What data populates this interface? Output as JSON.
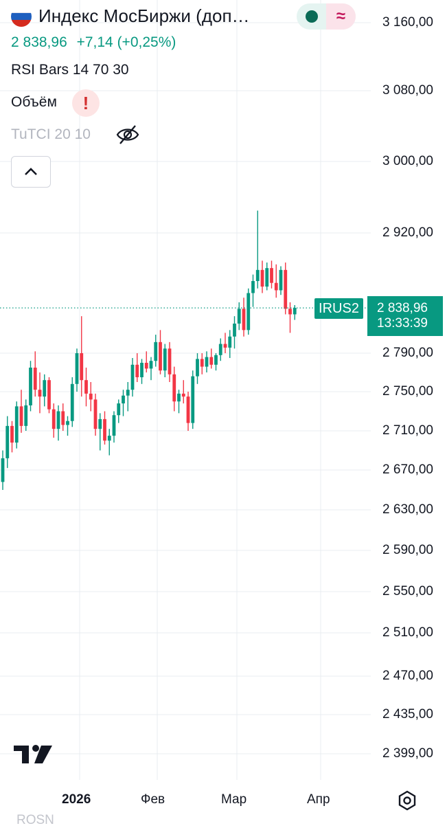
{
  "header": {
    "title": "Индекс МосБиржи (доп…",
    "price": "2 838,96",
    "change": "+7,14 (+0,25%)",
    "change_color": "#089981",
    "flag_icon": "russia-flag-icon",
    "indicators": [
      {
        "label": "RSI Bars 14 70 30"
      },
      {
        "label": "Объём",
        "badge": "!"
      },
      {
        "label": "TuTCI 20 10",
        "hidden_icon": "eye-off-icon"
      }
    ]
  },
  "toggles": {
    "left_icon": "dot-icon",
    "right_glyph": "≈"
  },
  "price_tag": {
    "symbol": "IRUS2",
    "price": "2 838,96",
    "countdown": "13:33:39",
    "color": "#089981"
  },
  "axis": {
    "y_ticks": [
      "3 160,00",
      "3 080,00",
      "3 000,00",
      "2 920,00",
      "2 790,00",
      "2 750,00",
      "2 710,00",
      "2 670,00",
      "2 630,00",
      "2 590,00",
      "2 550,00",
      "2 510,00",
      "2 470,00",
      "2 435,00",
      "2 399,00"
    ],
    "x_ticks": [
      "2026",
      "Фев",
      "Мар",
      "Апр"
    ]
  },
  "footer": {
    "partial_symbol": "ROSN"
  },
  "chart_data": {
    "type": "candlestick",
    "up_color": "#089981",
    "down_color": "#f23645",
    "last_price": 2838.96,
    "candles": [
      [
        2658,
        2690,
        2650,
        2682
      ],
      [
        2682,
        2725,
        2672,
        2715
      ],
      [
        2715,
        2720,
        2688,
        2698
      ],
      [
        2698,
        2740,
        2692,
        2735
      ],
      [
        2735,
        2752,
        2708,
        2715
      ],
      [
        2715,
        2742,
        2710,
        2736
      ],
      [
        2736,
        2782,
        2730,
        2775
      ],
      [
        2775,
        2792,
        2745,
        2752
      ],
      [
        2752,
        2770,
        2728,
        2745
      ],
      [
        2745,
        2768,
        2735,
        2762
      ],
      [
        2762,
        2765,
        2728,
        2732
      ],
      [
        2732,
        2738,
        2703,
        2712
      ],
      [
        2712,
        2736,
        2700,
        2730
      ],
      [
        2730,
        2738,
        2710,
        2716
      ],
      [
        2716,
        2725,
        2705,
        2720
      ],
      [
        2720,
        2765,
        2714,
        2758
      ],
      [
        2758,
        2795,
        2750,
        2790
      ],
      [
        2790,
        2830,
        2745,
        2762
      ],
      [
        2762,
        2775,
        2735,
        2748
      ],
      [
        2748,
        2760,
        2730,
        2742
      ],
      [
        2742,
        2748,
        2705,
        2712
      ],
      [
        2712,
        2728,
        2690,
        2722
      ],
      [
        2722,
        2730,
        2696,
        2700
      ],
      [
        2700,
        2712,
        2685,
        2705
      ],
      [
        2705,
        2730,
        2698,
        2726
      ],
      [
        2726,
        2742,
        2718,
        2738
      ],
      [
        2738,
        2752,
        2725,
        2746
      ],
      [
        2746,
        2760,
        2730,
        2752
      ],
      [
        2752,
        2785,
        2745,
        2778
      ],
      [
        2778,
        2790,
        2760,
        2765
      ],
      [
        2765,
        2784,
        2758,
        2780
      ],
      [
        2780,
        2792,
        2770,
        2774
      ],
      [
        2774,
        2786,
        2762,
        2782
      ],
      [
        2782,
        2810,
        2776,
        2802
      ],
      [
        2802,
        2815,
        2768,
        2772
      ],
      [
        2772,
        2800,
        2765,
        2795
      ],
      [
        2795,
        2802,
        2760,
        2768
      ],
      [
        2768,
        2776,
        2730,
        2740
      ],
      [
        2740,
        2752,
        2728,
        2748
      ],
      [
        2748,
        2762,
        2738,
        2745
      ],
      [
        2745,
        2750,
        2710,
        2718
      ],
      [
        2718,
        2772,
        2712,
        2766
      ],
      [
        2766,
        2790,
        2758,
        2784
      ],
      [
        2784,
        2790,
        2768,
        2776
      ],
      [
        2776,
        2792,
        2770,
        2786
      ],
      [
        2786,
        2795,
        2774,
        2778
      ],
      [
        2778,
        2790,
        2772,
        2788
      ],
      [
        2788,
        2806,
        2782,
        2800
      ],
      [
        2800,
        2812,
        2790,
        2796
      ],
      [
        2796,
        2815,
        2785,
        2808
      ],
      [
        2808,
        2830,
        2795,
        2822
      ],
      [
        2822,
        2845,
        2815,
        2838
      ],
      [
        2838,
        2850,
        2808,
        2815
      ],
      [
        2815,
        2860,
        2810,
        2855
      ],
      [
        2855,
        2875,
        2840,
        2868
      ],
      [
        2868,
        2945,
        2860,
        2880
      ],
      [
        2880,
        2890,
        2855,
        2862
      ],
      [
        2862,
        2888,
        2858,
        2882
      ],
      [
        2882,
        2890,
        2860,
        2866
      ],
      [
        2866,
        2886,
        2850,
        2858
      ],
      [
        2858,
        2884,
        2853,
        2880
      ],
      [
        2880,
        2888,
        2832,
        2838
      ],
      [
        2838,
        2845,
        2812,
        2832
      ],
      [
        2832,
        2842,
        2826,
        2839
      ]
    ]
  }
}
